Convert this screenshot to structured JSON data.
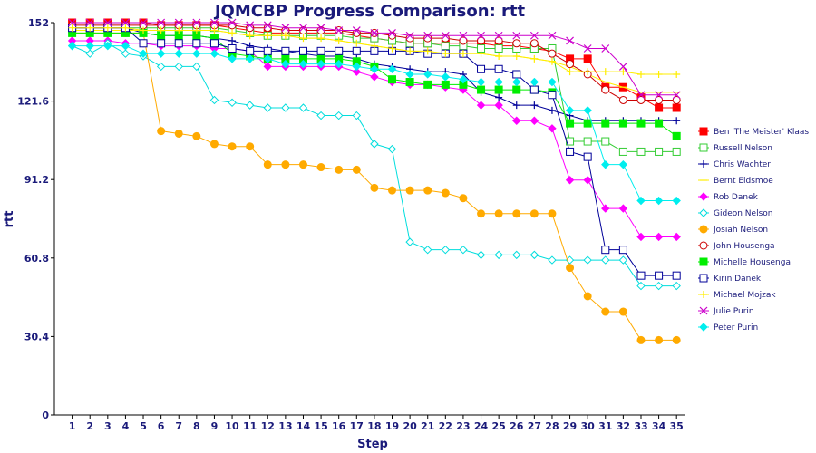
{
  "chart_data": {
    "type": "line",
    "title": "JQMCBP Progress Comparison: rtt",
    "xlabel": "Step",
    "ylabel": "rtt",
    "ylim": [
      0,
      152
    ],
    "yticks": [
      "0",
      "30.4",
      "60.8",
      "91.2",
      "121.6",
      "152"
    ],
    "x": [
      1,
      2,
      3,
      4,
      5,
      6,
      7,
      8,
      9,
      10,
      11,
      12,
      13,
      14,
      15,
      16,
      17,
      18,
      19,
      20,
      21,
      22,
      23,
      24,
      25,
      26,
      27,
      28,
      29,
      30,
      31,
      32,
      33,
      34,
      35
    ],
    "grid": false,
    "legend_position": "right",
    "series": [
      {
        "name": "Ben 'The Meister' Klaas",
        "color": "#ff0000",
        "marker": "square",
        "values": [
          152,
          152,
          152,
          152,
          152,
          151,
          151,
          151,
          151,
          150,
          149,
          148,
          148,
          148,
          148,
          148,
          147,
          146,
          145,
          144,
          144,
          144,
          144,
          144,
          143,
          143,
          142,
          141,
          138,
          138,
          127,
          127,
          123,
          119,
          119
        ]
      },
      {
        "name": "Russell Nelson",
        "color": "#33cc33",
        "marker": "square-open",
        "values": [
          150,
          150,
          150,
          150,
          150,
          150,
          150,
          150,
          150,
          149,
          148,
          147,
          147,
          147,
          147,
          147,
          146,
          146,
          145,
          144,
          144,
          143,
          143,
          142,
          142,
          142,
          142,
          142,
          106,
          106,
          106,
          102,
          102,
          102,
          102
        ]
      },
      {
        "name": "Chris Wachter",
        "color": "#000099",
        "marker": "plus",
        "values": [
          150,
          150,
          150,
          150,
          148,
          147,
          147,
          147,
          146,
          145,
          143,
          142,
          141,
          140,
          139,
          139,
          138,
          136,
          135,
          134,
          133,
          133,
          132,
          125,
          123,
          120,
          120,
          118,
          116,
          114,
          114,
          114,
          114,
          114,
          114
        ]
      },
      {
        "name": "Bernt Eidsmoe",
        "color": "#ffee00",
        "marker": "line",
        "values": [
          149,
          149,
          149,
          149,
          149,
          149,
          149,
          149,
          149,
          148,
          147,
          147,
          147,
          146,
          146,
          145,
          144,
          143,
          142,
          141,
          141,
          140,
          140,
          140,
          139,
          139,
          138,
          137,
          135,
          132,
          129,
          127,
          125,
          125,
          125
        ]
      },
      {
        "name": "Rob Danek",
        "color": "#ff00ff",
        "marker": "diamond",
        "values": [
          145,
          145,
          145,
          144,
          144,
          143,
          143,
          143,
          142,
          142,
          141,
          135,
          135,
          135,
          135,
          135,
          133,
          131,
          129,
          128,
          128,
          127,
          126,
          120,
          120,
          114,
          114,
          111,
          91,
          91,
          80,
          80,
          69,
          69,
          69
        ]
      },
      {
        "name": "Gideon Nelson",
        "color": "#00dddd",
        "marker": "diamond-open",
        "values": [
          143,
          140,
          144,
          140,
          139,
          135,
          135,
          135,
          122,
          121,
          120,
          119,
          119,
          119,
          116,
          116,
          116,
          105,
          103,
          67,
          64,
          64,
          64,
          62,
          62,
          62,
          62,
          60,
          60,
          60,
          60,
          60,
          50,
          50,
          50
        ]
      },
      {
        "name": "Josiah Nelson",
        "color": "#ffaa00",
        "marker": "circle",
        "values": [
          148,
          148,
          148,
          148,
          148,
          110,
          109,
          108,
          105,
          104,
          104,
          97,
          97,
          97,
          96,
          95,
          95,
          88,
          87,
          87,
          87,
          86,
          84,
          78,
          78,
          78,
          78,
          78,
          57,
          46,
          40,
          40,
          29,
          29,
          29
        ]
      },
      {
        "name": "John Housenga",
        "color": "#cc0000",
        "marker": "circle-open",
        "values": [
          151,
          151,
          151,
          151,
          151,
          151,
          151,
          151,
          151,
          151,
          150,
          150,
          149,
          149,
          149,
          149,
          148,
          148,
          147,
          146,
          146,
          146,
          145,
          145,
          145,
          144,
          144,
          140,
          136,
          132,
          126,
          122,
          122,
          122,
          122
        ]
      },
      {
        "name": "Michelle Housenga",
        "color": "#00ee00",
        "marker": "square",
        "values": [
          148,
          148,
          148,
          148,
          148,
          147,
          147,
          147,
          146,
          140,
          139,
          138,
          138,
          138,
          138,
          138,
          137,
          135,
          130,
          129,
          128,
          128,
          128,
          126,
          126,
          126,
          126,
          125,
          113,
          113,
          113,
          113,
          113,
          113,
          108
        ]
      },
      {
        "name": "Kirin Danek",
        "color": "#000099",
        "marker": "square-open",
        "values": [
          150,
          150,
          150,
          150,
          144,
          144,
          144,
          144,
          144,
          142,
          141,
          141,
          141,
          141,
          141,
          141,
          141,
          141,
          141,
          141,
          140,
          140,
          140,
          134,
          134,
          132,
          126,
          124,
          102,
          100,
          64,
          64,
          54,
          54,
          54
        ]
      },
      {
        "name": "Michael Mojzak",
        "color": "#ffee00",
        "marker": "plus",
        "values": [
          150,
          150,
          150,
          150,
          149,
          149,
          149,
          149,
          149,
          148,
          147,
          147,
          147,
          146,
          146,
          145,
          144,
          143,
          142,
          141,
          141,
          140,
          140,
          140,
          139,
          139,
          138,
          137,
          133,
          133,
          133,
          133,
          132,
          132,
          132
        ]
      },
      {
        "name": "Julie Purin",
        "color": "#cc00cc",
        "marker": "cross",
        "values": [
          152,
          152,
          152,
          152,
          152,
          152,
          152,
          152,
          152,
          152,
          151,
          151,
          150,
          150,
          150,
          149,
          149,
          148,
          148,
          147,
          147,
          147,
          147,
          147,
          147,
          147,
          147,
          147,
          145,
          142,
          142,
          135,
          124,
          124,
          124
        ]
      },
      {
        "name": "Peter Purin",
        "color": "#00eeee",
        "marker": "diamond",
        "values": [
          143,
          143,
          143,
          143,
          140,
          140,
          140,
          140,
          140,
          138,
          138,
          138,
          136,
          136,
          136,
          136,
          135,
          134,
          134,
          132,
          132,
          131,
          130,
          129,
          129,
          129,
          129,
          129,
          118,
          118,
          97,
          97,
          83,
          83,
          83
        ]
      }
    ]
  }
}
